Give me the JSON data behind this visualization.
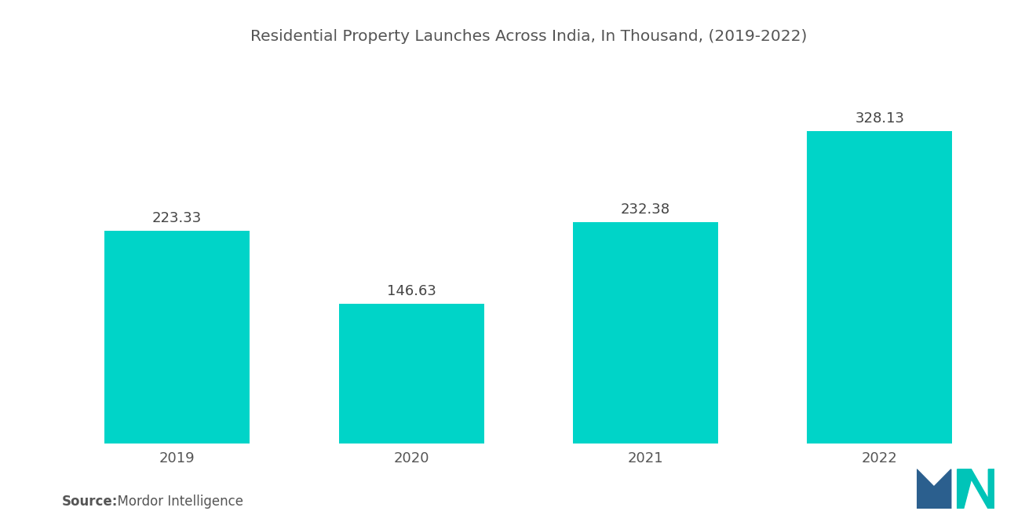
{
  "title": "Residential Property Launches Across India, In Thousand, (2019-2022)",
  "categories": [
    "2019",
    "2020",
    "2021",
    "2022"
  ],
  "values": [
    223.33,
    146.63,
    232.38,
    328.13
  ],
  "bar_color": "#00D4C8",
  "bar_edge_color": "none",
  "background_color": "#ffffff",
  "title_fontsize": 14.5,
  "title_color": "#555555",
  "label_fontsize": 13,
  "label_color": "#444444",
  "tick_fontsize": 13,
  "tick_color": "#555555",
  "source_bold": "Source:",
  "source_normal": "  Mordor Intelligence",
  "source_fontsize": 12,
  "ylim": [
    0,
    400
  ],
  "bar_width": 0.62,
  "logo_blue": "#2B5F8E",
  "logo_teal": "#00C4B8"
}
